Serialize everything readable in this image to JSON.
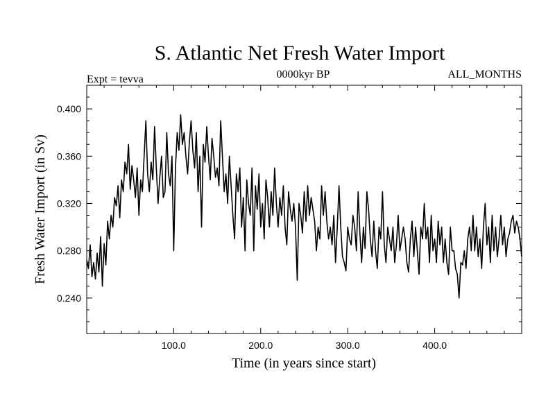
{
  "chart_data": {
    "type": "line",
    "title": "S. Atlantic Net Fresh Water Import",
    "subtitle_left": "Expt = tevva",
    "subtitle_center": "0000kyr BP",
    "subtitle_right": "ALL_MONTHS",
    "xlabel": "Time (in years since start)",
    "ylabel": "Fresh Water Import (in Sv)",
    "xlim": [
      0,
      500
    ],
    "ylim": [
      0.21,
      0.42
    ],
    "x_ticks": [
      100,
      200,
      300,
      400
    ],
    "x_tick_labels": [
      "100.0",
      "200.0",
      "300.0",
      "400.0"
    ],
    "y_ticks": [
      0.24,
      0.28,
      0.32,
      0.36,
      0.4
    ],
    "y_tick_labels": [
      "0.240",
      "0.280",
      "0.320",
      "0.360",
      "0.400"
    ],
    "grid": false,
    "line_color": "#000000",
    "series": [
      {
        "x": [
          0,
          2,
          4,
          6,
          8,
          10,
          12,
          14,
          16,
          18,
          20,
          22,
          24,
          26,
          28,
          30,
          32,
          34,
          36,
          38,
          40,
          42,
          44,
          46,
          48,
          50,
          52,
          54,
          56,
          58,
          60,
          62,
          64,
          66,
          68,
          70,
          72,
          74,
          76,
          78,
          80,
          82,
          84,
          86,
          88,
          90,
          92,
          94,
          96,
          98,
          100,
          102,
          104,
          106,
          108,
          110,
          112,
          114,
          116,
          118,
          120,
          122,
          124,
          126,
          128,
          130,
          132,
          134,
          136,
          138,
          140,
          142,
          144,
          146,
          148,
          150,
          152,
          154,
          156,
          158,
          160,
          162,
          164,
          166,
          168,
          170,
          172,
          174,
          176,
          178,
          180,
          182,
          184,
          186,
          188,
          190,
          192,
          194,
          196,
          198,
          200,
          202,
          204,
          206,
          208,
          210,
          212,
          214,
          216,
          218,
          220,
          222,
          224,
          226,
          228,
          230,
          232,
          234,
          236,
          238,
          240,
          242,
          244,
          246,
          248,
          250,
          252,
          254,
          256,
          258,
          260,
          262,
          264,
          266,
          268,
          270,
          272,
          274,
          276,
          278,
          280,
          282,
          284,
          286,
          288,
          290,
          292,
          294,
          296,
          298,
          300,
          302,
          304,
          306,
          308,
          310,
          312,
          314,
          316,
          318,
          320,
          322,
          324,
          326,
          328,
          330,
          332,
          334,
          336,
          338,
          340,
          342,
          344,
          346,
          348,
          350,
          352,
          354,
          356,
          358,
          360,
          362,
          364,
          366,
          368,
          370,
          372,
          374,
          376,
          378,
          380,
          382,
          384,
          386,
          388,
          390,
          392,
          394,
          396,
          398,
          400,
          402,
          404,
          406,
          408,
          410,
          412,
          414,
          416,
          418,
          420,
          422,
          424,
          426,
          428,
          430,
          432,
          434,
          436,
          438,
          440,
          442,
          444,
          446,
          448,
          450,
          452,
          454,
          456,
          458,
          460,
          462,
          464,
          466,
          468,
          470,
          472,
          474,
          476,
          478,
          480,
          482,
          484,
          486,
          488,
          490,
          492,
          494,
          496,
          498,
          500
        ],
        "values": [
          0.272,
          0.265,
          0.285,
          0.258,
          0.27,
          0.256,
          0.278,
          0.262,
          0.292,
          0.25,
          0.286,
          0.268,
          0.305,
          0.29,
          0.31,
          0.3,
          0.325,
          0.318,
          0.335,
          0.308,
          0.34,
          0.33,
          0.355,
          0.345,
          0.37,
          0.332,
          0.352,
          0.34,
          0.325,
          0.35,
          0.31,
          0.34,
          0.33,
          0.36,
          0.39,
          0.345,
          0.33,
          0.355,
          0.34,
          0.385,
          0.35,
          0.32,
          0.342,
          0.36,
          0.325,
          0.33,
          0.38,
          0.345,
          0.335,
          0.36,
          0.28,
          0.35,
          0.38,
          0.365,
          0.395,
          0.37,
          0.38,
          0.36,
          0.345,
          0.372,
          0.39,
          0.365,
          0.35,
          0.38,
          0.33,
          0.36,
          0.3,
          0.37,
          0.355,
          0.385,
          0.36,
          0.34,
          0.375,
          0.36,
          0.342,
          0.35,
          0.335,
          0.39,
          0.36,
          0.33,
          0.345,
          0.32,
          0.36,
          0.335,
          0.31,
          0.29,
          0.345,
          0.33,
          0.35,
          0.3,
          0.325,
          0.28,
          0.34,
          0.32,
          0.31,
          0.35,
          0.28,
          0.335,
          0.315,
          0.345,
          0.3,
          0.32,
          0.29,
          0.34,
          0.325,
          0.3,
          0.33,
          0.31,
          0.35,
          0.32,
          0.3,
          0.325,
          0.31,
          0.335,
          0.3,
          0.285,
          0.33,
          0.315,
          0.305,
          0.32,
          0.3,
          0.255,
          0.32,
          0.31,
          0.295,
          0.33,
          0.305,
          0.335,
          0.31,
          0.325,
          0.315,
          0.305,
          0.28,
          0.3,
          0.29,
          0.335,
          0.31,
          0.33,
          0.305,
          0.29,
          0.3,
          0.285,
          0.31,
          0.27,
          0.3,
          0.335,
          0.3,
          0.275,
          0.27,
          0.263,
          0.3,
          0.29,
          0.285,
          0.31,
          0.3,
          0.28,
          0.33,
          0.295,
          0.27,
          0.3,
          0.282,
          0.33,
          0.315,
          0.29,
          0.275,
          0.305,
          0.28,
          0.265,
          0.3,
          0.29,
          0.33,
          0.285,
          0.27,
          0.3,
          0.29,
          0.28,
          0.3,
          0.27,
          0.285,
          0.31,
          0.28,
          0.29,
          0.3,
          0.29,
          0.27,
          0.262,
          0.29,
          0.305,
          0.275,
          0.3,
          0.28,
          0.26,
          0.3,
          0.29,
          0.32,
          0.29,
          0.3,
          0.27,
          0.31,
          0.28,
          0.29,
          0.27,
          0.305,
          0.285,
          0.3,
          0.27,
          0.29,
          0.27,
          0.26,
          0.3,
          0.28,
          0.28,
          0.265,
          0.26,
          0.24,
          0.27,
          0.268,
          0.28,
          0.265,
          0.29,
          0.3,
          0.28,
          0.31,
          0.28,
          0.3,
          0.275,
          0.29,
          0.265,
          0.3,
          0.32,
          0.285,
          0.3,
          0.27,
          0.31,
          0.28,
          0.3,
          0.275,
          0.29,
          0.31,
          0.285,
          0.3,
          0.275,
          0.29,
          0.295,
          0.305,
          0.31,
          0.295,
          0.305,
          0.3,
          0.29,
          0.275
        ]
      }
    ]
  }
}
